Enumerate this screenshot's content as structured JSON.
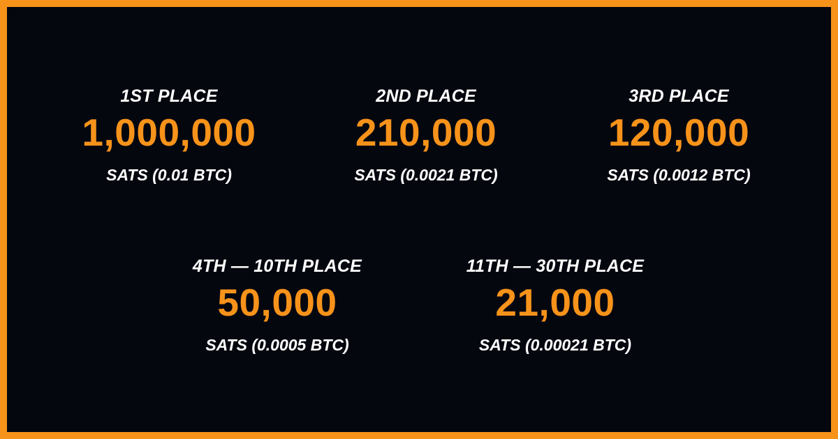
{
  "prizes": [
    {
      "place": "1ST PLACE",
      "amount": "1,000,000",
      "sats": "SATS (0.01 BTC)"
    },
    {
      "place": "2ND PLACE",
      "amount": "210,000",
      "sats": "SATS (0.0021 BTC)"
    },
    {
      "place": "3RD PLACE",
      "amount": "120,000",
      "sats": "SATS (0.0012 BTC)"
    },
    {
      "place": "4TH — 10TH PLACE",
      "amount": "50,000",
      "sats": "SATS (0.0005 BTC)"
    },
    {
      "place": "11TH — 30TH PLACE",
      "amount": "21,000",
      "sats": "SATS (0.00021 BTC)"
    }
  ],
  "colors": {
    "accent": "#f7931a",
    "background": "#05070f",
    "text": "#ffffff"
  }
}
